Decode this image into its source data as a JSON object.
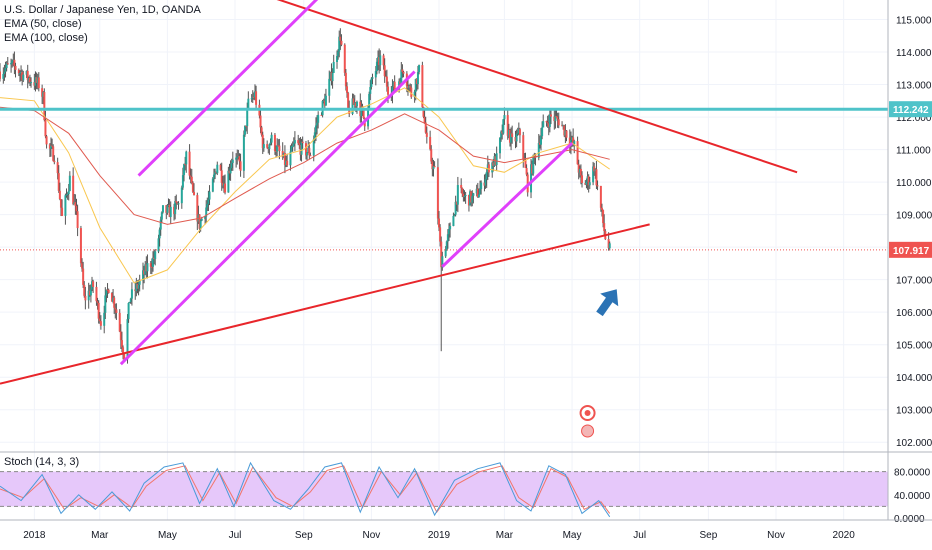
{
  "header": {
    "symbol_title": "U.S. Dollar / Japanese Yen, 1D, OANDA",
    "indicators": [
      "EMA (50, close)",
      "EMA (100, close)"
    ]
  },
  "stoch": {
    "label": "Stoch (14, 3, 3)",
    "levels": [
      0,
      20,
      40,
      80
    ],
    "tick_labels": [
      "80.0000",
      "40.0000",
      "0.0000"
    ]
  },
  "price_badges": {
    "resistance": {
      "label": "112.242",
      "color": "#4fc3c9"
    },
    "last": {
      "label": "107.917",
      "color": "#ef5350"
    }
  },
  "colors": {
    "grid": "#f0f3fa",
    "up": "#26a69a",
    "down": "#ef5350",
    "wick": "#555555",
    "ema50": "#f9c74f",
    "ema100": "#e05a4f",
    "magenta": "#e040fb",
    "trend": "#e8262b",
    "resistance": "#4fc3c9",
    "stoch_fill": "#e6c8fa",
    "stoch_k": "#4a9bd8",
    "stoch_d": "#f2756a",
    "arrow": "#2b73b5"
  },
  "chart_data": {
    "type": "candlestick",
    "x_range": [
      "2017-12-01",
      "2020-02-10"
    ],
    "ylim": [
      101.7,
      115.6
    ],
    "y_ticks": [
      102,
      103,
      104,
      105,
      106,
      107,
      108,
      109,
      110,
      111,
      112,
      113,
      114,
      115
    ],
    "y_tick_labels": [
      "102.000",
      "103.000",
      "104.000",
      "105.000",
      "106.000",
      "107.000",
      "108.000",
      "109.000",
      "110.000",
      "111.000",
      "112.000",
      "113.000",
      "114.000",
      "115.000"
    ],
    "x_ticks": [
      {
        "date": "2018-01-01",
        "label": "2018"
      },
      {
        "date": "2018-03-01",
        "label": "Mar"
      },
      {
        "date": "2018-05-01",
        "label": "May"
      },
      {
        "date": "2018-07-01",
        "label": "Jul"
      },
      {
        "date": "2018-09-01",
        "label": "Sep"
      },
      {
        "date": "2018-11-01",
        "label": "Nov"
      },
      {
        "date": "2019-01-01",
        "label": "2019"
      },
      {
        "date": "2019-03-01",
        "label": "Mar"
      },
      {
        "date": "2019-05-01",
        "label": "May"
      },
      {
        "date": "2019-07-01",
        "label": "Jul"
      },
      {
        "date": "2019-09-01",
        "label": "Sep"
      },
      {
        "date": "2019-11-01",
        "label": "Nov"
      },
      {
        "date": "2020-01-01",
        "label": "2020"
      }
    ],
    "price_path": [
      [
        "2017-12-01",
        113.4
      ],
      [
        "2017-12-12",
        113.6
      ],
      [
        "2017-12-22",
        113.3
      ],
      [
        "2018-01-05",
        113.0
      ],
      [
        "2018-01-09",
        112.6
      ],
      [
        "2018-01-12",
        111.1
      ],
      [
        "2018-01-20",
        110.8
      ],
      [
        "2018-01-26",
        108.9
      ],
      [
        "2018-02-02",
        110.1
      ],
      [
        "2018-02-09",
        108.7
      ],
      [
        "2018-02-15",
        106.4
      ],
      [
        "2018-02-23",
        106.8
      ],
      [
        "2018-03-02",
        105.7
      ],
      [
        "2018-03-09",
        106.8
      ],
      [
        "2018-03-15",
        106.2
      ],
      [
        "2018-03-23",
        104.7
      ],
      [
        "2018-03-28",
        106.4
      ],
      [
        "2018-04-06",
        106.9
      ],
      [
        "2018-04-13",
        107.4
      ],
      [
        "2018-04-20",
        107.7
      ],
      [
        "2018-04-27",
        109.1
      ],
      [
        "2018-05-04",
        109.1
      ],
      [
        "2018-05-11",
        109.3
      ],
      [
        "2018-05-18",
        110.8
      ],
      [
        "2018-05-25",
        109.4
      ],
      [
        "2018-05-30",
        108.7
      ],
      [
        "2018-06-08",
        109.5
      ],
      [
        "2018-06-15",
        110.6
      ],
      [
        "2018-06-22",
        109.9
      ],
      [
        "2018-06-29",
        110.8
      ],
      [
        "2018-07-06",
        110.5
      ],
      [
        "2018-07-13",
        112.4
      ],
      [
        "2018-07-19",
        112.7
      ],
      [
        "2018-07-27",
        111.0
      ],
      [
        "2018-08-03",
        111.3
      ],
      [
        "2018-08-10",
        110.9
      ],
      [
        "2018-08-17",
        110.5
      ],
      [
        "2018-08-24",
        111.2
      ],
      [
        "2018-08-31",
        111.0
      ],
      [
        "2018-09-07",
        110.9
      ],
      [
        "2018-09-14",
        112.0
      ],
      [
        "2018-09-21",
        112.6
      ],
      [
        "2018-09-28",
        113.6
      ],
      [
        "2018-10-04",
        114.5
      ],
      [
        "2018-10-11",
        112.2
      ],
      [
        "2018-10-19",
        112.5
      ],
      [
        "2018-10-26",
        111.9
      ],
      [
        "2018-11-02",
        113.2
      ],
      [
        "2018-11-09",
        113.8
      ],
      [
        "2018-11-16",
        112.9
      ],
      [
        "2018-11-23",
        112.9
      ],
      [
        "2018-11-30",
        113.5
      ],
      [
        "2018-12-07",
        112.7
      ],
      [
        "2018-12-14",
        113.4
      ],
      [
        "2018-12-21",
        111.2
      ],
      [
        "2018-12-28",
        110.3
      ],
      [
        "2019-01-03",
        107.6
      ],
      [
        "2019-01-11",
        108.5
      ],
      [
        "2019-01-18",
        109.7
      ],
      [
        "2019-01-25",
        109.5
      ],
      [
        "2019-02-01",
        109.5
      ],
      [
        "2019-02-08",
        109.8
      ],
      [
        "2019-02-15",
        110.5
      ],
      [
        "2019-02-22",
        110.7
      ],
      [
        "2019-03-01",
        111.9
      ],
      [
        "2019-03-08",
        111.2
      ],
      [
        "2019-03-15",
        111.5
      ],
      [
        "2019-03-22",
        109.9
      ],
      [
        "2019-03-29",
        110.9
      ],
      [
        "2019-04-05",
        111.7
      ],
      [
        "2019-04-12",
        112.0
      ],
      [
        "2019-04-19",
        111.9
      ],
      [
        "2019-04-26",
        111.5
      ],
      [
        "2019-05-03",
        111.1
      ],
      [
        "2019-05-10",
        109.9
      ],
      [
        "2019-05-17",
        110.1
      ],
      [
        "2019-05-21",
        110.5
      ],
      [
        "2019-05-31",
        108.3
      ],
      [
        "2019-06-04",
        107.9
      ]
    ],
    "ema50_path": [
      [
        "2017-12-01",
        112.6
      ],
      [
        "2018-01-01",
        112.5
      ],
      [
        "2018-02-01",
        110.9
      ],
      [
        "2018-03-01",
        108.6
      ],
      [
        "2018-04-01",
        106.9
      ],
      [
        "2018-05-01",
        107.3
      ],
      [
        "2018-06-01",
        108.6
      ],
      [
        "2018-07-01",
        109.7
      ],
      [
        "2018-08-01",
        110.7
      ],
      [
        "2018-09-01",
        111.0
      ],
      [
        "2018-10-01",
        112.0
      ],
      [
        "2018-11-01",
        112.4
      ],
      [
        "2018-12-01",
        112.9
      ],
      [
        "2019-01-01",
        112.0
      ],
      [
        "2019-02-01",
        110.5
      ],
      [
        "2019-03-01",
        110.3
      ],
      [
        "2019-04-01",
        110.9
      ],
      [
        "2019-05-01",
        111.2
      ],
      [
        "2019-06-04",
        110.4
      ]
    ],
    "ema100_path": [
      [
        "2017-12-01",
        112.3
      ],
      [
        "2018-01-01",
        112.2
      ],
      [
        "2018-02-01",
        111.5
      ],
      [
        "2018-03-01",
        110.2
      ],
      [
        "2018-04-01",
        109.0
      ],
      [
        "2018-05-01",
        108.7
      ],
      [
        "2018-06-01",
        108.9
      ],
      [
        "2018-07-01",
        109.5
      ],
      [
        "2018-08-01",
        110.1
      ],
      [
        "2018-09-01",
        110.6
      ],
      [
        "2018-10-01",
        111.2
      ],
      [
        "2018-11-01",
        111.6
      ],
      [
        "2018-12-01",
        112.1
      ],
      [
        "2019-01-01",
        111.6
      ],
      [
        "2019-02-01",
        110.8
      ],
      [
        "2019-03-01",
        110.6
      ],
      [
        "2019-04-01",
        110.8
      ],
      [
        "2019-05-01",
        111.0
      ],
      [
        "2019-06-04",
        110.7
      ]
    ],
    "drawings": {
      "resistance_level": 112.242,
      "last_price": 107.917,
      "upper_trendline": [
        [
          "2018-07-15",
          115.9
        ],
        [
          "2019-11-20",
          110.3
        ]
      ],
      "lower_trendline": [
        [
          "2017-12-01",
          103.8
        ],
        [
          "2019-07-10",
          108.7
        ]
      ],
      "magenta_lines": [
        [
          [
            "2018-04-05",
            110.2
          ],
          [
            "2018-09-15",
            115.7
          ]
        ],
        [
          [
            "2018-03-20",
            104.4
          ],
          [
            "2018-12-10",
            113.4
          ]
        ],
        [
          [
            "2019-01-04",
            107.4
          ],
          [
            "2019-05-01",
            111.2
          ]
        ]
      ]
    },
    "stoch_k": [
      [
        "2017-12-01",
        55
      ],
      [
        "2017-12-20",
        30
      ],
      [
        "2018-01-08",
        75
      ],
      [
        "2018-01-25",
        8
      ],
      [
        "2018-02-10",
        40
      ],
      [
        "2018-02-25",
        15
      ],
      [
        "2018-03-12",
        45
      ],
      [
        "2018-03-28",
        12
      ],
      [
        "2018-04-10",
        60
      ],
      [
        "2018-04-28",
        88
      ],
      [
        "2018-05-15",
        95
      ],
      [
        "2018-05-30",
        25
      ],
      [
        "2018-06-15",
        85
      ],
      [
        "2018-06-30",
        20
      ],
      [
        "2018-07-15",
        95
      ],
      [
        "2018-08-05",
        30
      ],
      [
        "2018-08-20",
        15
      ],
      [
        "2018-09-05",
        50
      ],
      [
        "2018-09-20",
        88
      ],
      [
        "2018-10-05",
        95
      ],
      [
        "2018-10-22",
        10
      ],
      [
        "2018-11-08",
        88
      ],
      [
        "2018-11-25",
        35
      ],
      [
        "2018-12-10",
        85
      ],
      [
        "2018-12-28",
        5
      ],
      [
        "2019-01-15",
        65
      ],
      [
        "2019-02-05",
        85
      ],
      [
        "2019-02-25",
        95
      ],
      [
        "2019-03-12",
        30
      ],
      [
        "2019-03-25",
        12
      ],
      [
        "2019-04-10",
        90
      ],
      [
        "2019-04-25",
        75
      ],
      [
        "2019-05-10",
        8
      ],
      [
        "2019-05-25",
        30
      ],
      [
        "2019-06-04",
        2
      ]
    ],
    "stoch_d": [
      [
        "2017-12-01",
        50
      ],
      [
        "2017-12-22",
        35
      ],
      [
        "2018-01-10",
        68
      ],
      [
        "2018-01-28",
        15
      ],
      [
        "2018-02-12",
        35
      ],
      [
        "2018-02-28",
        20
      ],
      [
        "2018-03-14",
        40
      ],
      [
        "2018-03-30",
        18
      ],
      [
        "2018-04-12",
        55
      ],
      [
        "2018-04-30",
        82
      ],
      [
        "2018-05-17",
        90
      ],
      [
        "2018-06-02",
        30
      ],
      [
        "2018-06-17",
        78
      ],
      [
        "2018-07-02",
        25
      ],
      [
        "2018-07-17",
        88
      ],
      [
        "2018-08-07",
        35
      ],
      [
        "2018-08-22",
        20
      ],
      [
        "2018-09-07",
        45
      ],
      [
        "2018-09-22",
        82
      ],
      [
        "2018-10-07",
        90
      ],
      [
        "2018-10-24",
        18
      ],
      [
        "2018-11-10",
        80
      ],
      [
        "2018-11-27",
        40
      ],
      [
        "2018-12-12",
        78
      ],
      [
        "2018-12-30",
        10
      ],
      [
        "2019-01-17",
        58
      ],
      [
        "2019-02-07",
        80
      ],
      [
        "2019-02-27",
        90
      ],
      [
        "2019-03-14",
        35
      ],
      [
        "2019-03-27",
        18
      ],
      [
        "2019-04-12",
        85
      ],
      [
        "2019-04-27",
        70
      ],
      [
        "2019-05-12",
        15
      ],
      [
        "2019-05-27",
        28
      ],
      [
        "2019-06-04",
        8
      ]
    ]
  }
}
